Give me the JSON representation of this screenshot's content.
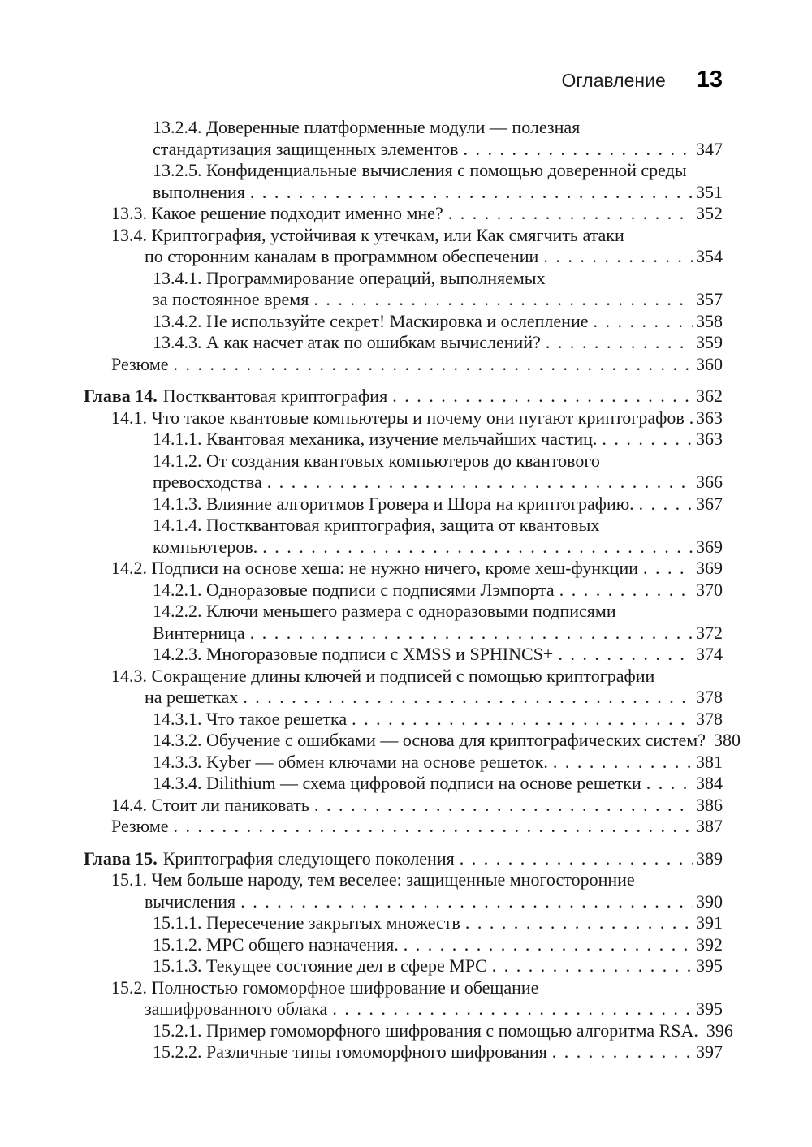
{
  "header": {
    "title": "Оглавление",
    "page_number": "13"
  },
  "toc": {
    "lines": [
      {
        "indent": "subsection",
        "text": "13.2.4. Доверенные платформенные модули — полезная"
      },
      {
        "indent": "subsection-cont",
        "text": "стандартизация защищенных элементов",
        "page": "347"
      },
      {
        "indent": "subsection",
        "text": "13.2.5. Конфиденциальные вычисления с помощью доверенной среды"
      },
      {
        "indent": "subsection-cont",
        "text": "выполнения",
        "page": "351"
      },
      {
        "indent": "section",
        "text": "13.3. Какое решение подходит именно мне?",
        "page": "352"
      },
      {
        "indent": "section",
        "text": "13.4. Криптография, устойчивая к утечкам, или Как смягчить атаки"
      },
      {
        "indent": "section-cont",
        "text": "по сторонним каналам в программном обеспечении",
        "page": "354"
      },
      {
        "indent": "subsection",
        "text": "13.4.1. Программирование операций, выполняемых"
      },
      {
        "indent": "subsection-cont",
        "text": "за постоянное время",
        "page": "357"
      },
      {
        "indent": "subsection",
        "text": "13.4.2. Не используйте секрет! Маскировка и ослепление",
        "page": "358"
      },
      {
        "indent": "subsection",
        "text": "13.4.3. А как насчет атак по ошибкам вычислений?",
        "page": "359"
      },
      {
        "indent": "section",
        "text": "Резюме",
        "page": "360"
      },
      {
        "indent": "chapter",
        "bold": "Глава 14.",
        "text": "Постквантовая криптография",
        "page": "362",
        "gap_before": true
      },
      {
        "indent": "section",
        "text": "14.1. Что такое квантовые компьютеры и почему они пугают криптографов",
        "page": "363"
      },
      {
        "indent": "subsection",
        "text": "14.1.1. Квантовая механика, изучение мельчайших частиц.",
        "page": "363"
      },
      {
        "indent": "subsection",
        "text": "14.1.2. От создания квантовых компьютеров до квантового"
      },
      {
        "indent": "subsection-cont",
        "text": "превосходства",
        "page": "366"
      },
      {
        "indent": "subsection",
        "text": "14.1.3. Влияние алгоритмов Гровера и Шора на криптографию.",
        "page": "367"
      },
      {
        "indent": "subsection",
        "text": "14.1.4. Постквантовая криптография, защита от квантовых"
      },
      {
        "indent": "subsection-cont",
        "text": "компьютеров.",
        "page": "369"
      },
      {
        "indent": "section",
        "text": "14.2. Подписи на основе хеша: не нужно ничего, кроме хеш-функции",
        "page": "369"
      },
      {
        "indent": "subsection",
        "text": "14.2.1. Одноразовые подписи с подписями Лэмпорта",
        "page": "370"
      },
      {
        "indent": "subsection",
        "text": "14.2.2. Ключи меньшего размера с одноразовыми подписями"
      },
      {
        "indent": "subsection-cont",
        "text": "Винтерница",
        "page": "372"
      },
      {
        "indent": "subsection",
        "text": "14.2.3. Многоразовые подписи с XMSS и SPHINCS+",
        "page": "374"
      },
      {
        "indent": "section",
        "text": "14.3. Сокращение длины ключей и подписей с помощью криптографии"
      },
      {
        "indent": "section-cont",
        "text": "на решетках",
        "page": "378"
      },
      {
        "indent": "subsection",
        "text": "14.3.1. Что такое решетка",
        "page": "378"
      },
      {
        "indent": "subsection",
        "text": "14.3.2. Обучение с ошибками — основа для криптографических систем?",
        "page": "380"
      },
      {
        "indent": "subsection",
        "text": "14.3.3. Kyber — обмен ключами на основе решеток.",
        "page": "381"
      },
      {
        "indent": "subsection",
        "text": "14.3.4. Dilithium — схема цифровой подписи на основе решетки",
        "page": "384"
      },
      {
        "indent": "section",
        "text": "14.4. Стоит ли паниковать",
        "page": "386"
      },
      {
        "indent": "section",
        "text": "Резюме",
        "page": "387"
      },
      {
        "indent": "chapter",
        "bold": "Глава 15.",
        "text": "Криптография следующего поколения",
        "page": "389",
        "gap_before": true
      },
      {
        "indent": "section",
        "text": "15.1. Чем больше народу, тем веселее: защищенные многосторонние"
      },
      {
        "indent": "section-cont",
        "text": "вычисления",
        "page": "390"
      },
      {
        "indent": "subsection",
        "text": "15.1.1. Пересечение закрытых множеств",
        "page": "391"
      },
      {
        "indent": "subsection",
        "text": "15.1.2. MPC общего назначения.",
        "page": "392"
      },
      {
        "indent": "subsection",
        "text": "15.1.3. Текущее состояние дел в сфере MPC",
        "page": "395"
      },
      {
        "indent": "section",
        "text": "15.2. Полностью гомоморфное шифрование и обещание"
      },
      {
        "indent": "section-cont",
        "text": "зашифрованного облака",
        "page": "395"
      },
      {
        "indent": "subsection",
        "text": "15.2.1. Пример гомоморфного шифрования с помощью алгоритма RSA.",
        "page": "396"
      },
      {
        "indent": "subsection",
        "text": "15.2.2. Различные типы гомоморфного шифрования",
        "page": "397"
      }
    ]
  }
}
